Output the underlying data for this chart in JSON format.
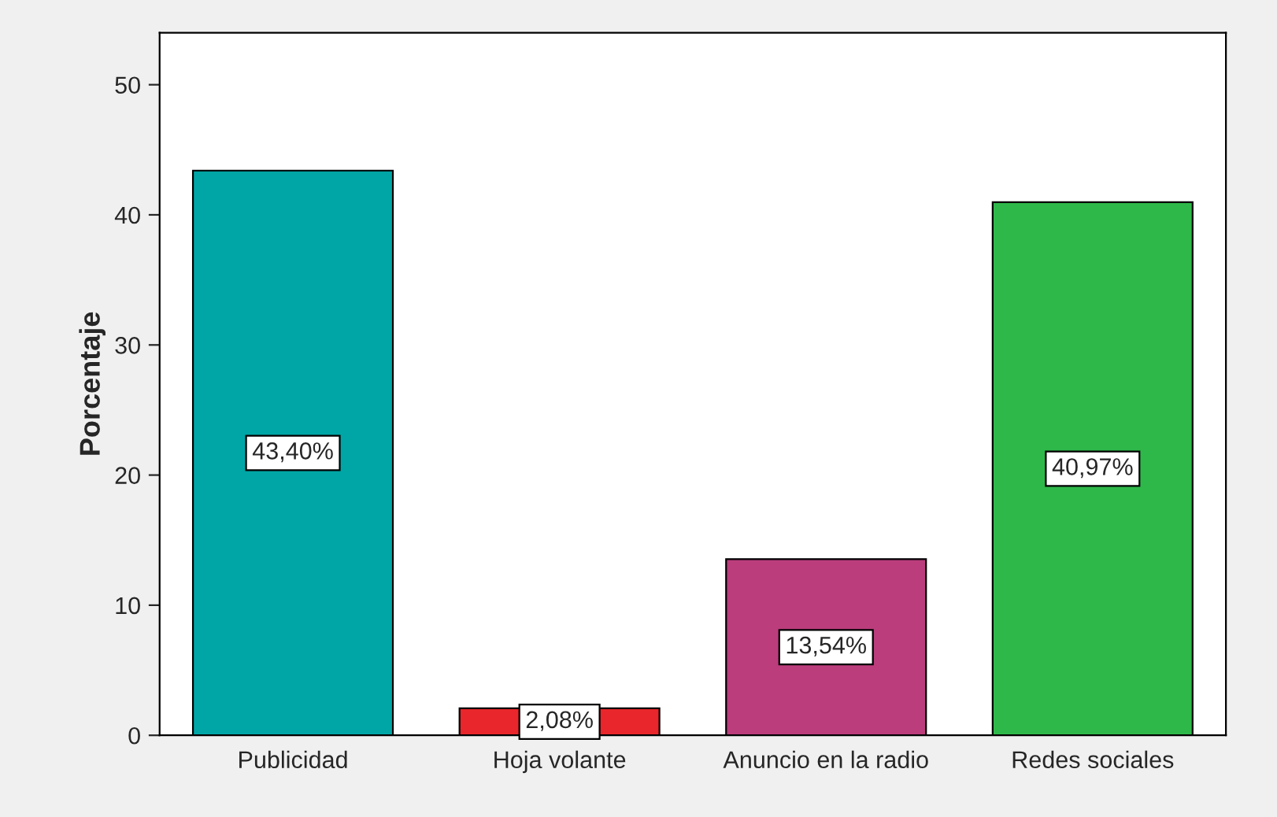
{
  "chart_data": {
    "type": "bar",
    "ylabel": "Porcentaje",
    "categories": [
      "Publicidad",
      "Hoja volante",
      "Anuncio en la radio",
      "Redes sociales"
    ],
    "values": [
      43.4,
      2.08,
      13.54,
      40.97
    ],
    "colors": [
      "#00a6a6",
      "#e8262b",
      "#bb3d7c",
      "#2fb84a"
    ],
    "value_labels": [
      "43,40%",
      "2,08%",
      "13,54%",
      "40,97%"
    ],
    "ylim": [
      0,
      54
    ],
    "yticks": [
      0,
      10,
      20,
      30,
      40,
      50
    ],
    "grid": false,
    "legend": false
  }
}
